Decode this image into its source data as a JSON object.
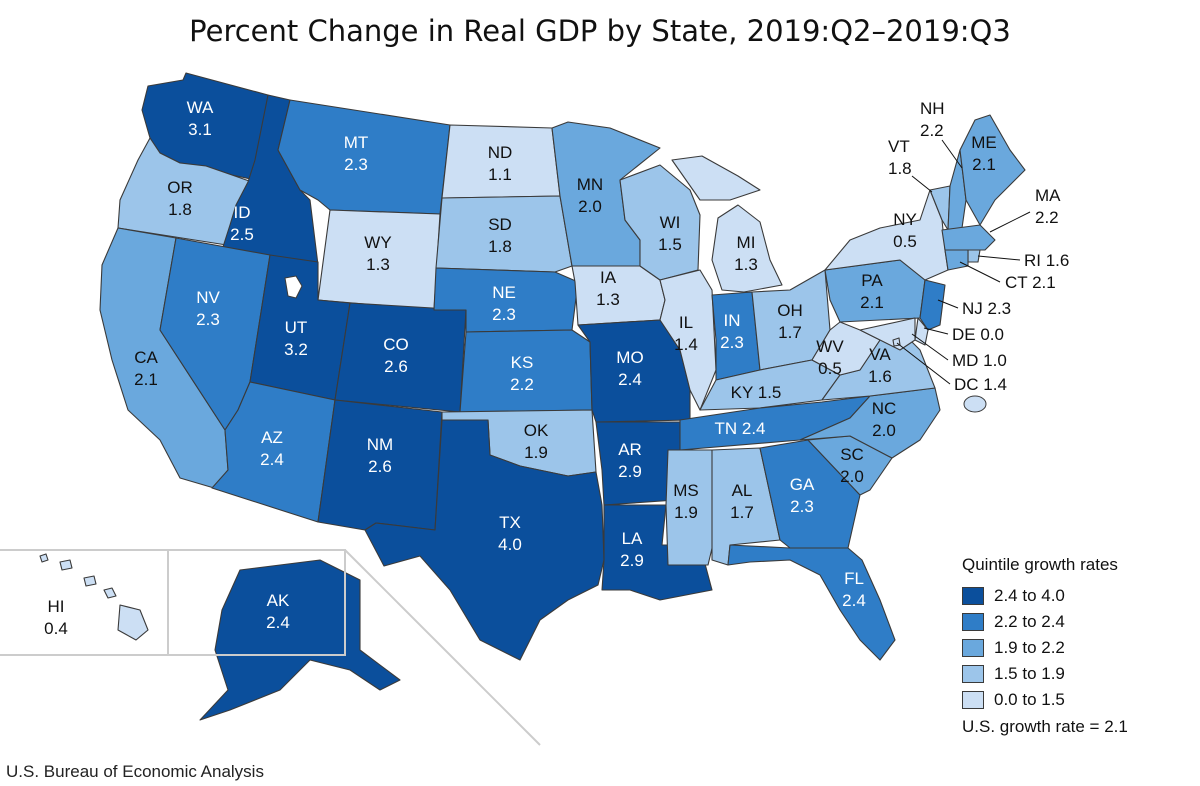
{
  "title": "Percent Change in Real GDP by State, 2019:Q2–2019:Q3",
  "source": "U.S. Bureau of Economic Analysis",
  "colors": {
    "q1": "#0b4f9c",
    "q2": "#2f7dc7",
    "q3": "#6aa8dd",
    "q4": "#9cc5ea",
    "q5": "#ccdff4",
    "text_dark": "#ffffff",
    "text_light": "#111111"
  },
  "legend": {
    "title": "Quintile growth rates",
    "items": [
      {
        "label": "2.4 to 4.0",
        "color": "#0b4f9c"
      },
      {
        "label": "2.2 to 2.4",
        "color": "#2f7dc7"
      },
      {
        "label": "1.9 to 2.2",
        "color": "#6aa8dd"
      },
      {
        "label": "1.5 to 1.9",
        "color": "#9cc5ea"
      },
      {
        "label": "0.0 to 1.5",
        "color": "#ccdff4"
      }
    ],
    "us_rate": "U.S. growth rate = 2.1"
  },
  "states": {
    "WA": {
      "name": "WA",
      "value": "3.1",
      "q": 1
    },
    "OR": {
      "name": "OR",
      "value": "1.8",
      "q": 4
    },
    "CA": {
      "name": "CA",
      "value": "2.1",
      "q": 3
    },
    "ID": {
      "name": "ID",
      "value": "2.5",
      "q": 1
    },
    "NV": {
      "name": "NV",
      "value": "2.3",
      "q": 2
    },
    "MT": {
      "name": "MT",
      "value": "2.3",
      "q": 2
    },
    "WY": {
      "name": "WY",
      "value": "1.3",
      "q": 5
    },
    "UT": {
      "name": "UT",
      "value": "3.2",
      "q": 1
    },
    "CO": {
      "name": "CO",
      "value": "2.6",
      "q": 1
    },
    "AZ": {
      "name": "AZ",
      "value": "2.4",
      "q": 2
    },
    "NM": {
      "name": "NM",
      "value": "2.6",
      "q": 1
    },
    "ND": {
      "name": "ND",
      "value": "1.1",
      "q": 5
    },
    "SD": {
      "name": "SD",
      "value": "1.8",
      "q": 4
    },
    "NE": {
      "name": "NE",
      "value": "2.3",
      "q": 2
    },
    "KS": {
      "name": "KS",
      "value": "2.2",
      "q": 2
    },
    "OK": {
      "name": "OK",
      "value": "1.9",
      "q": 4
    },
    "TX": {
      "name": "TX",
      "value": "4.0",
      "q": 1
    },
    "MN": {
      "name": "MN",
      "value": "2.0",
      "q": 3
    },
    "IA": {
      "name": "IA",
      "value": "1.3",
      "q": 5
    },
    "MO": {
      "name": "MO",
      "value": "2.4",
      "q": 1
    },
    "AR": {
      "name": "AR",
      "value": "2.9",
      "q": 1
    },
    "LA": {
      "name": "LA",
      "value": "2.9",
      "q": 1
    },
    "WI": {
      "name": "WI",
      "value": "1.5",
      "q": 4
    },
    "IL": {
      "name": "IL",
      "value": "1.4",
      "q": 5
    },
    "MI": {
      "name": "MI",
      "value": "1.3",
      "q": 5
    },
    "IN": {
      "name": "IN",
      "value": "2.3",
      "q": 2
    },
    "OH": {
      "name": "OH",
      "value": "1.7",
      "q": 4
    },
    "KY": {
      "name": "KY",
      "value": "1.5",
      "q": 4
    },
    "TN": {
      "name": "TN",
      "value": "2.4",
      "q": 2
    },
    "MS": {
      "name": "MS",
      "value": "1.9",
      "q": 4
    },
    "AL": {
      "name": "AL",
      "value": "1.7",
      "q": 4
    },
    "GA": {
      "name": "GA",
      "value": "2.3",
      "q": 2
    },
    "FL": {
      "name": "FL",
      "value": "2.4",
      "q": 2
    },
    "SC": {
      "name": "SC",
      "value": "2.0",
      "q": 3
    },
    "NC": {
      "name": "NC",
      "value": "2.0",
      "q": 3
    },
    "VA": {
      "name": "VA",
      "value": "1.6",
      "q": 4
    },
    "WV": {
      "name": "WV",
      "value": "0.5",
      "q": 5
    },
    "PA": {
      "name": "PA",
      "value": "2.1",
      "q": 3
    },
    "NY": {
      "name": "NY",
      "value": "0.5",
      "q": 5
    },
    "VT": {
      "name": "VT",
      "value": "1.8",
      "q": 4
    },
    "NH": {
      "name": "NH",
      "value": "2.2",
      "q": 3
    },
    "ME": {
      "name": "ME",
      "value": "2.1",
      "q": 3
    },
    "MA": {
      "name": "MA",
      "value": "2.2",
      "q": 3
    },
    "RI": {
      "name": "RI",
      "value": "1.6",
      "q": 4
    },
    "CT": {
      "name": "CT",
      "value": "2.1",
      "q": 3
    },
    "NJ": {
      "name": "NJ",
      "value": "2.3",
      "q": 2
    },
    "DE": {
      "name": "DE",
      "value": "0.0",
      "q": 5
    },
    "MD": {
      "name": "MD",
      "value": "1.0",
      "q": 5
    },
    "DC": {
      "name": "DC",
      "value": "1.4",
      "q": 5
    },
    "AK": {
      "name": "AK",
      "value": "2.4",
      "q": 1
    },
    "HI": {
      "name": "HI",
      "value": "0.4",
      "q": 5
    }
  },
  "external_labels": {
    "NH": "2.2",
    "VT": "1.8",
    "MA": "2.2",
    "RI": "RI 1.6",
    "CT": "CT 2.1",
    "NJ": "NJ 2.3",
    "DE": "DE 0.0",
    "MD": "MD 1.0",
    "DC": "DC 1.4"
  }
}
